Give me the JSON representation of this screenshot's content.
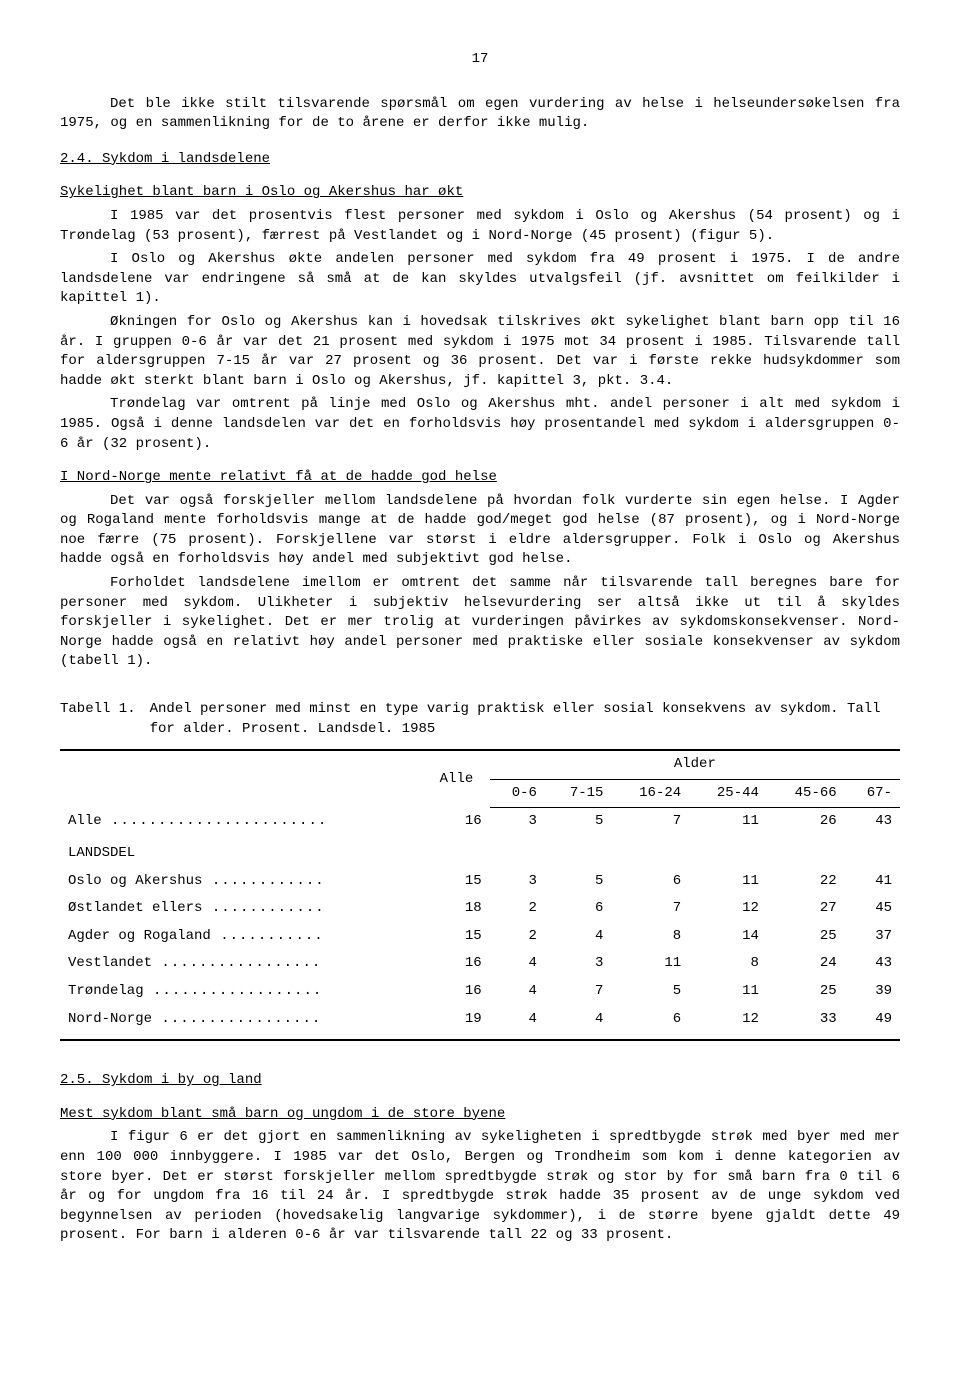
{
  "page_number": "17",
  "paragraphs": {
    "intro": "Det ble ikke stilt tilsvarende spørsmål om egen vurdering av helse i helseundersøkelsen fra 1975, og en sammenlikning for de to årene er derfor ikke mulig.",
    "s24_title": "2.4.  Sykdom i landsdelene",
    "s24_sub1": "Sykelighet blant barn i Oslo og Akershus har økt",
    "s24_p1": "I 1985 var det prosentvis flest personer med sykdom i Oslo og Akershus (54 prosent) og i Trøndelag (53 prosent), færrest på Vestlandet og i Nord-Norge (45 prosent) (figur 5).",
    "s24_p2": "I Oslo og Akershus økte andelen personer med sykdom fra 49 prosent i 1975. I de andre landsdelene var endringene så små at de kan skyldes utvalgsfeil (jf. avsnittet om feilkilder i kapittel 1).",
    "s24_p3": "Økningen for Oslo og Akershus kan i hovedsak tilskrives økt sykelighet blant barn opp til 16 år.  I gruppen 0-6 år var det 21 prosent med sykdom i 1975 mot 34 prosent i 1985. Tilsvarende tall for aldersgruppen 7-15 år var 27 prosent og 36 prosent.  Det var i første rekke hudsykdommer som hadde økt sterkt blant barn i Oslo og Akershus, jf. kapittel 3, pkt. 3.4.",
    "s24_p4": "Trøndelag var omtrent på linje med Oslo og Akershus mht. andel personer i alt med sykdom i 1985.  Også i denne landsdelen var det en forholdsvis høy prosentandel med sykdom i aldersgruppen 0-6 år (32 prosent).",
    "s24_sub2": "I Nord-Norge mente relativt få at de hadde god helse",
    "s24_p5": "Det var også forskjeller mellom landsdelene på hvordan folk vurderte sin egen helse.  I Agder og Rogaland mente forholdsvis mange at de hadde god/meget god helse (87 prosent), og i Nord-Norge noe færre (75 prosent).  Forskjellene var størst i eldre aldersgrupper.  Folk i Oslo og Akershus hadde også en forholdsvis høy andel med subjektivt god helse.",
    "s24_p6": "Forholdet landsdelene imellom er omtrent det samme når tilsvarende tall beregnes bare for personer med sykdom.  Ulikheter i subjektiv helsevurdering ser altså ikke ut til å skyldes forskjeller i sykelighet.  Det er mer trolig at vurderingen påvirkes av sykdomskonsekvenser.  Nord-Norge hadde også en relativt høy andel personer med praktiske eller sosiale konsekvenser av sykdom (tabell 1).",
    "s25_title": "2.5.  Sykdom i by og land",
    "s25_sub1": "Mest sykdom blant små barn og ungdom i de store byene",
    "s25_p1": "I figur 6 er det gjort en sammenlikning av sykeligheten i spredtbygde strøk med byer med mer enn 100 000 innbyggere.  I 1985 var det Oslo, Bergen og Trondheim som kom i denne kategorien av store byer.  Det er størst forskjeller mellom spredtbygde strøk og stor by for små barn fra 0 til 6 år og for ungdom fra 16 til 24 år.  I spredtbygde strøk hadde 35 prosent av de unge sykdom ved begynnelsen av perioden (hovedsakelig langvarige sykdommer), i de større byene gjaldt dette 49 prosent.  For barn i alderen 0-6 år var tilsvarende tall 22 og 33 prosent."
  },
  "table": {
    "caption_label": "Tabell 1.",
    "caption_text": "Andel personer med minst en type varig praktisk eller sosial konsekvens av sykdom.  Tall for alder.  Prosent.  Landsdel.  1985",
    "col_alle": "Alle",
    "col_alder": "Alder",
    "age_cols": [
      "0-6",
      "7-15",
      "16-24",
      "25-44",
      "45-66",
      "67-"
    ],
    "row_alle_label": "Alle",
    "row_alle": [
      "16",
      "3",
      "5",
      "7",
      "11",
      "26",
      "43"
    ],
    "landsdel_header": "LANDSDEL",
    "rows": [
      {
        "label": "Oslo og Akershus",
        "vals": [
          "15",
          "3",
          "5",
          "6",
          "11",
          "22",
          "41"
        ]
      },
      {
        "label": "Østlandet ellers",
        "vals": [
          "18",
          "2",
          "6",
          "7",
          "12",
          "27",
          "45"
        ]
      },
      {
        "label": "Agder og Rogaland",
        "vals": [
          "15",
          "2",
          "4",
          "8",
          "14",
          "25",
          "37"
        ]
      },
      {
        "label": "Vestlandet",
        "vals": [
          "16",
          "4",
          "3",
          "11",
          "8",
          "24",
          "43"
        ]
      },
      {
        "label": "Trøndelag",
        "vals": [
          "16",
          "4",
          "7",
          "5",
          "11",
          "25",
          "39"
        ]
      },
      {
        "label": "Nord-Norge",
        "vals": [
          "19",
          "4",
          "4",
          "6",
          "12",
          "33",
          "49"
        ]
      }
    ]
  }
}
